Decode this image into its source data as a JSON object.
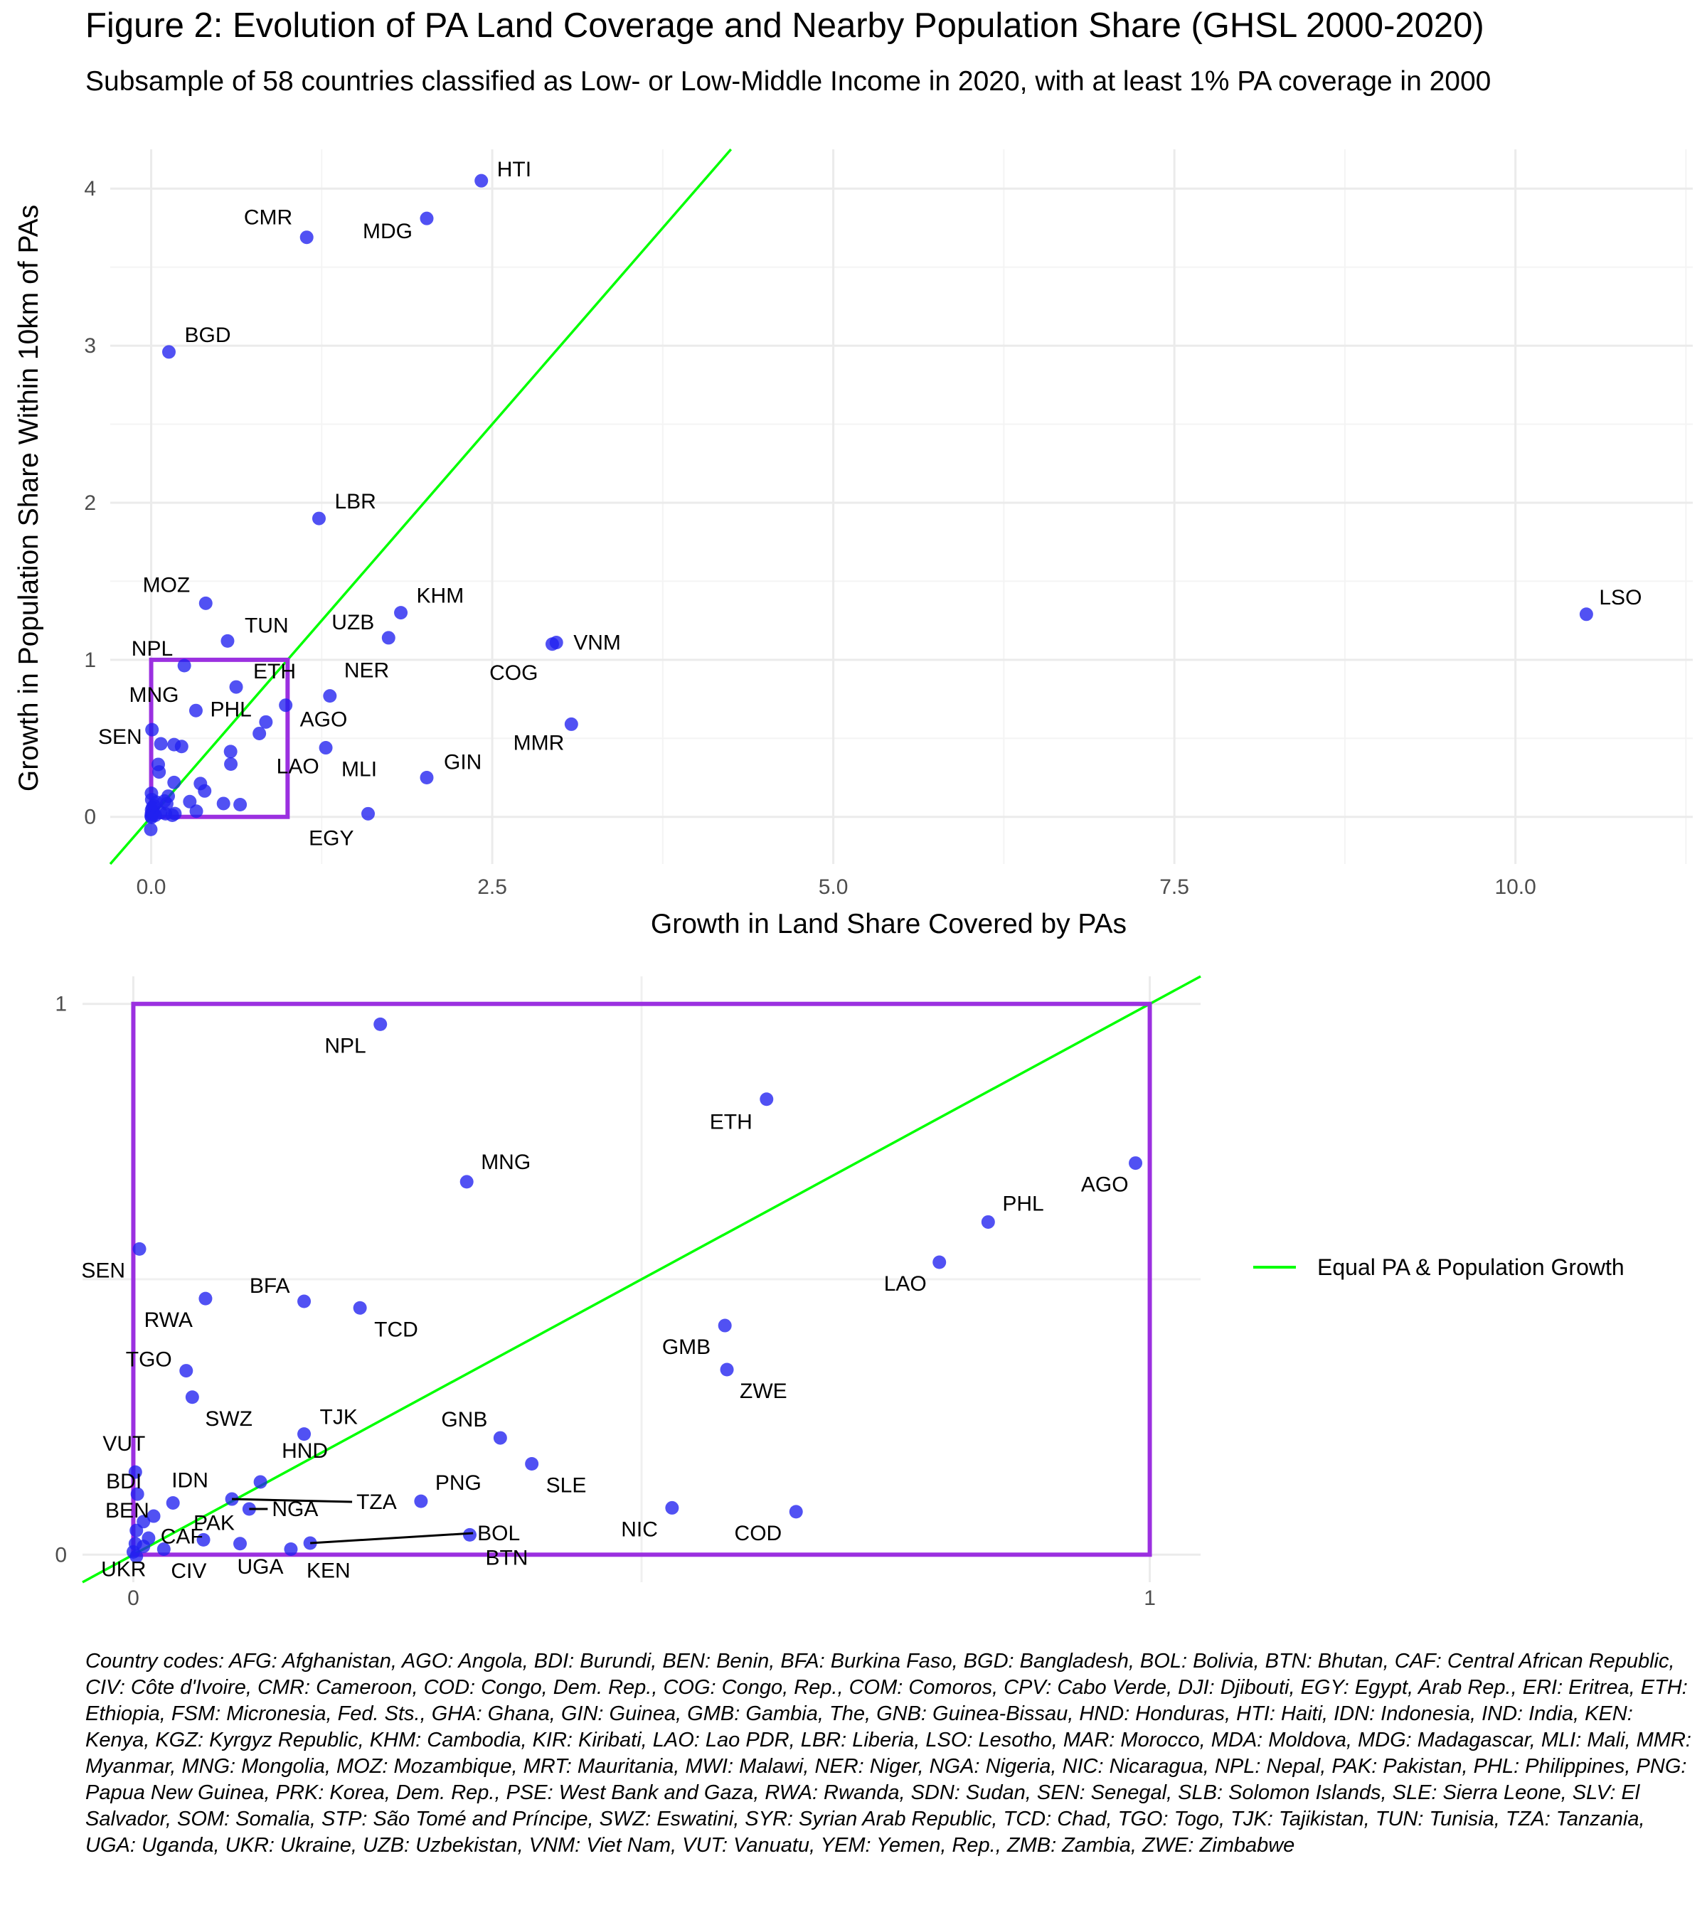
{
  "title": "Figure 2: Evolution of PA Land Coverage and Nearby Population Share (GHSL 2000-2020)",
  "subtitle": "Subsample of 58 countries classified as Low- or Low-Middle Income in 2020, with at least 1% PA coverage in 2000",
  "caption": "Country codes: AFG: Afghanistan, AGO: Angola, BDI: Burundi, BEN: Benin, BFA: Burkina Faso, BGD: Bangladesh, BOL: Bolivia, BTN: Bhutan, CAF: Central African Republic, CIV: Côte d'Ivoire, CMR: Cameroon, COD: Congo, Dem. Rep., COG: Congo, Rep., COM: Comoros, CPV: Cabo Verde, DJI: Djibouti, EGY: Egypt, Arab Rep., ERI: Eritrea, ETH: Ethiopia, FSM: Micronesia, Fed. Sts., GHA: Ghana, GIN: Guinea, GMB: Gambia, The, GNB: Guinea-Bissau, HND: Honduras, HTI: Haiti, IDN: Indonesia, IND: India, KEN: Kenya, KGZ: Kyrgyz Republic, KHM: Cambodia, KIR: Kiribati, LAO: Lao PDR, LBR: Liberia, LSO: Lesotho, MAR: Morocco, MDA: Moldova, MDG: Madagascar, MLI: Mali, MMR: Myanmar, MNG: Mongolia, MOZ: Mozambique, MRT: Mauritania, MWI: Malawi, NER: Niger, NGA: Nigeria, NIC: Nicaragua, NPL: Nepal, PAK: Pakistan, PHL: Philippines, PNG: Papua New Guinea, PRK: Korea, Dem. Rep., PSE: West Bank and Gaza, RWA: Rwanda, SDN: Sudan, SEN: Senegal, SLB: Solomon Islands, SLE: Sierra Leone, SLV: El Salvador, SOM: Somalia, STP: São Tomé and Príncipe, SWZ: Eswatini, SYR: Syrian Arab Republic, TCD: Chad, TGO: Togo, TJK: Tajikistan, TUN: Tunisia, TZA: Tanzania, UGA: Uganda, UKR: Ukraine, UZB: Uzbekistan, VNM: Viet Nam, VUT: Vanuatu, YEM: Yemen, Rep., ZMB: Zambia, ZWE: Zimbabwe",
  "colors": {
    "points": "#2020f0",
    "equal_line": "#00ff00",
    "zoom_box": "#9b30e0",
    "grid": "#ebebeb"
  },
  "chart_data": [
    {
      "type": "scatter",
      "xlabel": "Growth in Land Share Covered by PAs",
      "ylabel": "Growth in Population Share Within 10km of PAs",
      "xlim": [
        -0.3,
        11.3
      ],
      "ylim": [
        -0.3,
        4.25
      ],
      "xticks": [
        0,
        2.5,
        5,
        7.5,
        10
      ],
      "xtick_labels": [
        "0.0",
        "2.5",
        "5.0",
        "7.5",
        "10.0"
      ],
      "yticks": [
        0,
        1,
        2,
        3,
        4
      ],
      "ytick_labels": [
        "0",
        "1",
        "2",
        "3",
        "4"
      ],
      "grid": true,
      "reference_line": {
        "slope": 1,
        "intercept": 0
      },
      "zoom_box": {
        "x": [
          0,
          1
        ],
        "y": [
          0,
          1
        ]
      },
      "points": [
        {
          "label": "HTI",
          "x": 2.42,
          "y": 4.05
        },
        {
          "label": "MDG",
          "x": 2.02,
          "y": 3.81
        },
        {
          "label": "CMR",
          "x": 1.14,
          "y": 3.69
        },
        {
          "label": "BGD",
          "x": 0.13,
          "y": 2.96
        },
        {
          "label": "LBR",
          "x": 1.23,
          "y": 1.9
        },
        {
          "label": "MOZ",
          "x": 0.4,
          "y": 1.36
        },
        {
          "label": "KHM",
          "x": 1.83,
          "y": 1.3
        },
        {
          "label": "LSO",
          "x": 10.52,
          "y": 1.29
        },
        {
          "label": "UZB",
          "x": 1.74,
          "y": 1.14
        },
        {
          "label": "TUN",
          "x": 0.56,
          "y": 1.12
        },
        {
          "label": "VNM",
          "x": 2.97,
          "y": 1.11
        },
        {
          "label": "COG",
          "x": 2.94,
          "y": 1.1
        },
        {
          "label": "NER",
          "x": 1.31,
          "y": 0.77
        },
        {
          "label": "MMR",
          "x": 3.08,
          "y": 0.59
        },
        {
          "label": "MLI",
          "x": 1.28,
          "y": 0.44
        },
        {
          "label": "GIN",
          "x": 2.02,
          "y": 0.25
        },
        {
          "label": "EGY",
          "x": 1.59,
          "y": 0.02
        },
        {
          "label": "NPL",
          "x": 0.243,
          "y": 0.963
        },
        {
          "label": "ETH",
          "x": 0.623,
          "y": 0.827
        },
        {
          "label": "MNG",
          "x": 0.328,
          "y": 0.677
        },
        {
          "label": "AGO",
          "x": 0.986,
          "y": 0.711
        },
        {
          "label": "PHL",
          "x": 0.841,
          "y": 0.604
        },
        {
          "label": "LAO",
          "x": 0.793,
          "y": 0.531
        },
        {
          "label": "SEN",
          "x": 0.006,
          "y": 0.555
        },
        {
          "label": "BFA",
          "x": 0.168,
          "y": 0.46
        },
        {
          "label": "RWA",
          "x": 0.071,
          "y": 0.465
        },
        {
          "label": "TCD",
          "x": 0.223,
          "y": 0.448
        },
        {
          "label": "GMB",
          "x": 0.582,
          "y": 0.416
        },
        {
          "label": "ZWE",
          "x": 0.584,
          "y": 0.336
        },
        {
          "label": "TGO",
          "x": 0.052,
          "y": 0.334
        },
        {
          "label": "SWZ",
          "x": 0.058,
          "y": 0.286
        },
        {
          "label": "TJK",
          "x": 0.168,
          "y": 0.219
        },
        {
          "label": "GNB",
          "x": 0.361,
          "y": 0.212
        },
        {
          "label": "SLE",
          "x": 0.392,
          "y": 0.165
        },
        {
          "label": "HND",
          "x": 0.125,
          "y": 0.132
        },
        {
          "label": "VUT",
          "x": 0.002,
          "y": 0.15
        },
        {
          "label": "BDI",
          "x": 0.004,
          "y": 0.11
        },
        {
          "label": "IDN",
          "x": 0.039,
          "y": 0.094
        },
        {
          "label": "TZA",
          "x": 0.097,
          "y": 0.101
        },
        {
          "label": "PNG",
          "x": 0.283,
          "y": 0.097
        },
        {
          "label": "NGA",
          "x": 0.114,
          "y": 0.083
        },
        {
          "label": "NIC",
          "x": 0.53,
          "y": 0.085
        },
        {
          "label": "COD",
          "x": 0.652,
          "y": 0.078
        },
        {
          "label": "BEN",
          "x": 0.003,
          "y": 0.044
        },
        {
          "label": "CAF",
          "x": 0.01,
          "y": 0.015
        },
        {
          "label": "PAK",
          "x": 0.069,
          "y": 0.027
        },
        {
          "label": "BOL",
          "x": 0.174,
          "y": 0.021
        },
        {
          "label": "BTN",
          "x": 0.331,
          "y": 0.036
        },
        {
          "label": "UKR",
          "x": 0.0,
          "y": 0.005
        },
        {
          "label": "CIV",
          "x": 0.002,
          "y": 0.02
        },
        {
          "label": "UGA",
          "x": 0.105,
          "y": 0.02
        },
        {
          "label": "KEN",
          "x": 0.155,
          "y": 0.01
        },
        {
          "label": "",
          "x": 0.003,
          "y": -0.003
        },
        {
          "label": "",
          "x": -0.003,
          "y": -0.08
        },
        {
          "label": "",
          "x": 0.01,
          "y": 0.06
        },
        {
          "label": "",
          "x": 0.02,
          "y": 0.07
        },
        {
          "label": "",
          "x": 0.015,
          "y": 0.03
        },
        {
          "label": "",
          "x": 0.03,
          "y": 0.01
        }
      ]
    },
    {
      "type": "scatter",
      "xlim": [
        -0.05,
        1.05
      ],
      "ylim": [
        -0.05,
        1.05
      ],
      "xticks": [
        0,
        1
      ],
      "xtick_labels": [
        "0",
        "1"
      ],
      "yticks": [
        0,
        1
      ],
      "ytick_labels": [
        "0",
        "1"
      ],
      "grid": true,
      "reference_line": {
        "slope": 1,
        "intercept": 0
      },
      "zoom_box": {
        "x": [
          0,
          1
        ],
        "y": [
          0,
          1
        ]
      },
      "legend": {
        "entries": [
          "Equal PA & Population Growth"
        ],
        "placement": "right"
      }
    }
  ]
}
